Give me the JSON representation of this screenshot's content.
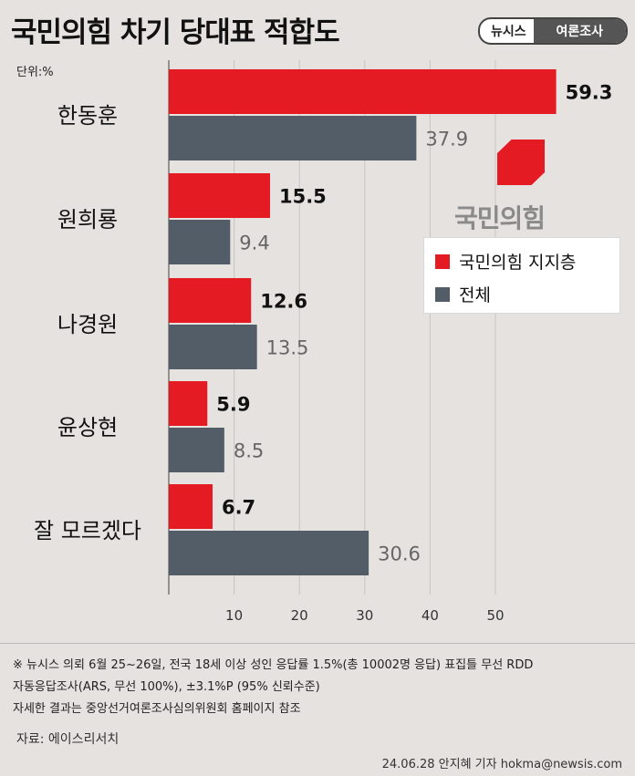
{
  "header": {
    "title": "국민의힘 차기 당대표 적합도",
    "brand_left": "뉴시스",
    "brand_right": "여론조사"
  },
  "unit_label": "단위:%",
  "logo": {
    "text": "국민의힘",
    "color": "#e51b24"
  },
  "legend": {
    "items": [
      {
        "label": "국민의힘 지지층",
        "color": "#e51b24"
      },
      {
        "label": "전체",
        "color": "#525d68"
      }
    ]
  },
  "chart_data": {
    "type": "bar",
    "orientation": "horizontal",
    "categories": [
      "한동훈",
      "원희룡",
      "나경원",
      "윤상현",
      "잘 모르겠다"
    ],
    "series": [
      {
        "name": "국민의힘 지지층",
        "color": "#e51b24",
        "values": [
          59.3,
          15.5,
          12.6,
          5.9,
          6.7
        ]
      },
      {
        "name": "전체",
        "color": "#525d68",
        "values": [
          37.9,
          9.4,
          13.5,
          8.5,
          30.6
        ]
      }
    ],
    "value_labels": [
      [
        "59.3",
        "15.5",
        "12.6",
        "5.9",
        "6.7"
      ],
      [
        "37.9",
        "9.4",
        "13.5",
        "8.5",
        "30.6"
      ]
    ],
    "x_ticks": [
      "10",
      "20",
      "30",
      "40",
      "50"
    ],
    "xlim": [
      0,
      59.3
    ],
    "grid": true,
    "legend_position": "right"
  },
  "notes": [
    "※ 뉴시스 의뢰 6월 25~26일, 전국 18세 이상 성인 응답률 1.5%(총 10002명 응답) 표집틀 무선 RDD",
    "자동응답조사(ARS, 무선 100%), ±3.1%P (95% 신뢰수준)",
    "자세한 결과는 중앙선거여론조사심의위원회 홈페이지 참조"
  ],
  "source": "자료: 에이스리서치",
  "byline": "24.06.28 안지혜 기자 hokma@newsis.com"
}
